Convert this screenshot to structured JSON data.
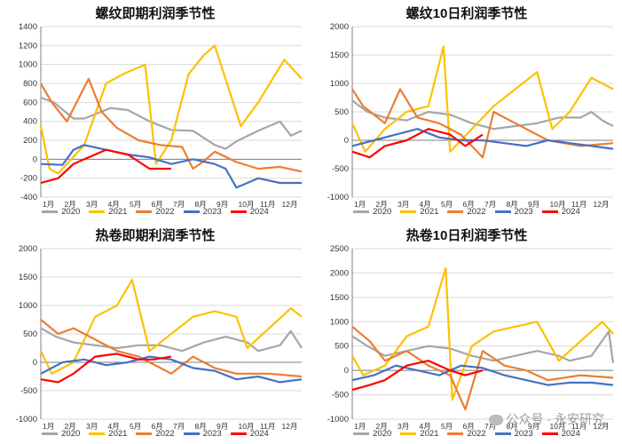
{
  "watermark": "公众号 · 永安研究",
  "colors": {
    "2020": "#a6a6a6",
    "2021": "#ffc000",
    "2022": "#ed7d31",
    "2023": "#4472c4",
    "2024": "#ff0000",
    "grid": "#d9d9d9",
    "axis": "#7f7f7f"
  },
  "chart_data": [
    {
      "type": "line",
      "title": "螺纹即期利润季节性",
      "xlabel": "",
      "ylabel": "",
      "ylim": [
        -400,
        1400
      ],
      "yticks": [
        -400,
        -200,
        0,
        200,
        400,
        600,
        800,
        1000,
        1200,
        1400
      ],
      "months": [
        "1月",
        "2月",
        "3月",
        "4月",
        "5月",
        "6月",
        "7月",
        "8月",
        "9月",
        "10月",
        "11月",
        "12月"
      ],
      "series": [
        {
          "name": "2020",
          "values": [
            650,
            600,
            430,
            430,
            540,
            520,
            400,
            310,
            300,
            150,
            110,
            190,
            300,
            400,
            250,
            300
          ],
          "x": [
            0,
            0.6,
            1.5,
            2,
            3.2,
            4,
            5,
            6,
            7,
            8,
            8.5,
            9,
            10,
            11,
            11.5,
            12
          ]
        },
        {
          "name": "2021",
          "values": [
            350,
            -100,
            -150,
            150,
            800,
            900,
            1000,
            -50,
            200,
            900,
            1100,
            1200,
            350,
            600,
            1050,
            850
          ],
          "x": [
            0,
            0.4,
            0.8,
            2,
            3,
            3.8,
            4.8,
            5.3,
            6,
            6.8,
            7.5,
            8,
            9.2,
            10,
            11.2,
            12
          ]
        },
        {
          "name": "2022",
          "values": [
            800,
            600,
            400,
            850,
            500,
            330,
            200,
            150,
            130,
            -100,
            -20,
            80,
            -30,
            -100,
            -80,
            -130
          ],
          "x": [
            0,
            0.5,
            1.2,
            2.2,
            2.8,
            3.5,
            4.5,
            5.5,
            6.5,
            7,
            7.5,
            8,
            9,
            10,
            11,
            12
          ]
        },
        {
          "name": "2023",
          "values": [
            -50,
            -60,
            100,
            150,
            100,
            50,
            20,
            -50,
            0,
            -50,
            -100,
            -300,
            -200,
            -250,
            -250
          ],
          "x": [
            0,
            1,
            1.5,
            2,
            3,
            4,
            5,
            6,
            7,
            8,
            8.5,
            9,
            10,
            11,
            12
          ]
        },
        {
          "name": "2024",
          "values": [
            -250,
            -200,
            -50,
            0,
            100,
            50,
            -100,
            -100
          ],
          "x": [
            0,
            0.8,
            1.5,
            2,
            3,
            4,
            5,
            6
          ]
        }
      ]
    },
    {
      "type": "line",
      "title": "螺纹10日利润季节性",
      "xlabel": "",
      "ylabel": "",
      "ylim": [
        -1000,
        2000
      ],
      "yticks": [
        -1000,
        -500,
        0,
        500,
        1000,
        1500,
        2000
      ],
      "months": [
        "1月",
        "2月",
        "3月",
        "4月",
        "5月",
        "6月",
        "7月",
        "8月",
        "9月",
        "10月",
        "11月",
        "12月"
      ],
      "series": [
        {
          "name": "2020",
          "values": [
            700,
            500,
            400,
            350,
            500,
            450,
            300,
            200,
            250,
            300,
            400,
            400,
            500,
            350,
            250
          ],
          "x": [
            0,
            0.7,
            1.5,
            2.5,
            3.5,
            4.5,
            5.5,
            6.5,
            7.5,
            8.5,
            9.5,
            10.5,
            11,
            11.5,
            12
          ]
        },
        {
          "name": "2021",
          "values": [
            300,
            -200,
            200,
            500,
            600,
            1650,
            -200,
            200,
            600,
            900,
            1200,
            200,
            500,
            1100,
            900
          ],
          "x": [
            0,
            0.6,
            1.5,
            2.5,
            3.5,
            4.2,
            4.5,
            5.5,
            6.5,
            7.5,
            8.5,
            9.2,
            10,
            11,
            12
          ]
        },
        {
          "name": "2022",
          "values": [
            900,
            600,
            300,
            900,
            400,
            300,
            100,
            -300,
            500,
            300,
            0,
            -100,
            -50
          ],
          "x": [
            0,
            0.5,
            1.5,
            2.2,
            3,
            4,
            5,
            6,
            6.5,
            7.5,
            9,
            10.5,
            12
          ]
        },
        {
          "name": "2023",
          "values": [
            -100,
            0,
            100,
            200,
            50,
            0,
            0,
            -50,
            -100,
            0,
            -50,
            -100,
            -150
          ],
          "x": [
            0,
            1,
            2,
            3,
            4,
            5,
            6,
            7,
            8,
            9,
            10,
            11,
            12
          ]
        },
        {
          "name": "2024",
          "values": [
            -200,
            -300,
            -100,
            0,
            200,
            100,
            -100,
            100
          ],
          "x": [
            0,
            0.8,
            1.5,
            2.5,
            3.5,
            4.5,
            5.2,
            6
          ]
        }
      ]
    },
    {
      "type": "line",
      "title": "热卷即期利润季节性",
      "xlabel": "",
      "ylabel": "",
      "ylim": [
        -1000,
        2000
      ],
      "yticks": [
        -1000,
        -500,
        0,
        500,
        1000,
        1500,
        2000
      ],
      "months": [
        "1月",
        "2月",
        "3月",
        "4月",
        "5月",
        "6月",
        "7月",
        "8月",
        "9月",
        "10月",
        "11月",
        "12月"
      ],
      "series": [
        {
          "name": "2020",
          "values": [
            600,
            450,
            350,
            300,
            250,
            300,
            300,
            200,
            350,
            450,
            350,
            200,
            300,
            550,
            250
          ],
          "x": [
            0,
            0.7,
            1.5,
            2.5,
            3.5,
            4.5,
            5.5,
            6.5,
            7.5,
            8.5,
            9.5,
            10,
            11,
            11.5,
            12
          ]
        },
        {
          "name": "2021",
          "values": [
            200,
            -200,
            0,
            800,
            1000,
            1450,
            200,
            500,
            800,
            900,
            800,
            250,
            600,
            950,
            800
          ],
          "x": [
            0,
            0.5,
            1.5,
            2.5,
            3.5,
            4.2,
            5,
            6,
            7,
            8,
            9,
            9.5,
            10.5,
            11.5,
            12
          ]
        },
        {
          "name": "2022",
          "values": [
            750,
            500,
            600,
            400,
            200,
            100,
            -100,
            -200,
            100,
            -100,
            -200,
            -200,
            -250
          ],
          "x": [
            0,
            0.8,
            1.5,
            2.5,
            3.5,
            4.5,
            5.5,
            6,
            7,
            8,
            9,
            10.5,
            12
          ]
        },
        {
          "name": "2023",
          "values": [
            -200,
            0,
            50,
            -50,
            0,
            100,
            50,
            -100,
            -150,
            -300,
            -250,
            -350,
            -300
          ],
          "x": [
            0,
            1,
            2,
            3,
            4,
            5,
            6,
            7,
            8,
            9,
            10,
            11,
            12
          ]
        },
        {
          "name": "2024",
          "values": [
            -300,
            -350,
            -200,
            100,
            150,
            50,
            50,
            100
          ],
          "x": [
            0,
            0.8,
            1.5,
            2.5,
            3.5,
            4.5,
            5.2,
            6
          ]
        }
      ]
    },
    {
      "type": "line",
      "title": "热卷10日利润季节性",
      "xlabel": "",
      "ylabel": "",
      "ylim": [
        -1000,
        2500
      ],
      "yticks": [
        -1000,
        -500,
        0,
        500,
        1000,
        1500,
        2000,
        2500
      ],
      "months": [
        "1月",
        "2月",
        "3月",
        "4月",
        "5月",
        "6月",
        "7月",
        "8月",
        "9月",
        "10月",
        "11月",
        "12月"
      ],
      "series": [
        {
          "name": "2020",
          "values": [
            700,
            500,
            300,
            400,
            500,
            450,
            300,
            200,
            300,
            400,
            300,
            200,
            300,
            800,
            150
          ],
          "x": [
            0,
            0.7,
            1.5,
            2.5,
            3.5,
            4.5,
            5.5,
            6.5,
            7.5,
            8.5,
            9.5,
            10,
            11,
            11.8,
            12
          ]
        },
        {
          "name": "2021",
          "values": [
            300,
            -100,
            100,
            700,
            900,
            2100,
            -600,
            500,
            800,
            900,
            1000,
            200,
            600,
            1000,
            750
          ],
          "x": [
            0,
            0.5,
            1.5,
            2.5,
            3.5,
            4.3,
            4.6,
            5.5,
            6.5,
            7.5,
            8.5,
            9.5,
            10.5,
            11.5,
            12
          ]
        },
        {
          "name": "2022",
          "values": [
            900,
            600,
            200,
            400,
            100,
            -100,
            -800,
            400,
            100,
            0,
            -200,
            -100,
            -150
          ],
          "x": [
            0,
            0.8,
            1.5,
            2.5,
            3.5,
            4.5,
            5.2,
            6,
            7,
            8,
            9,
            10.5,
            12
          ]
        },
        {
          "name": "2023",
          "values": [
            -200,
            -100,
            100,
            0,
            -100,
            100,
            50,
            -100,
            -200,
            -300,
            -250,
            -250,
            -300
          ],
          "x": [
            0,
            1,
            2,
            3,
            4,
            5,
            6,
            7,
            8,
            9,
            10,
            11,
            12
          ]
        },
        {
          "name": "2024",
          "values": [
            -400,
            -300,
            -200,
            100,
            200,
            0,
            -100,
            0
          ],
          "x": [
            0,
            0.8,
            1.5,
            2.5,
            3.5,
            4.5,
            5.2,
            6
          ]
        }
      ]
    }
  ]
}
